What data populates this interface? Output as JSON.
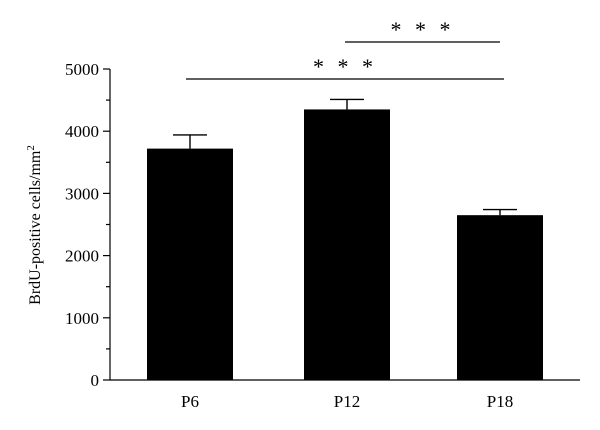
{
  "chart_data": {
    "type": "bar",
    "categories": [
      "P6",
      "P12",
      "P18"
    ],
    "values": [
      3720,
      4350,
      2650
    ],
    "errors": [
      220,
      160,
      90
    ],
    "ylabel_main": "BrdU-positive cells/mm",
    "ylabel_sup": "2",
    "xlabel": "",
    "ylim": [
      0,
      5000
    ],
    "yticks": [
      0,
      1000,
      2000,
      3000,
      4000,
      5000
    ],
    "bar_color": "#000000",
    "significance": [
      {
        "from": "P12",
        "to": "P18",
        "label": "* * *"
      },
      {
        "from": "P6",
        "to": "P18",
        "label": "* * *"
      }
    ]
  }
}
